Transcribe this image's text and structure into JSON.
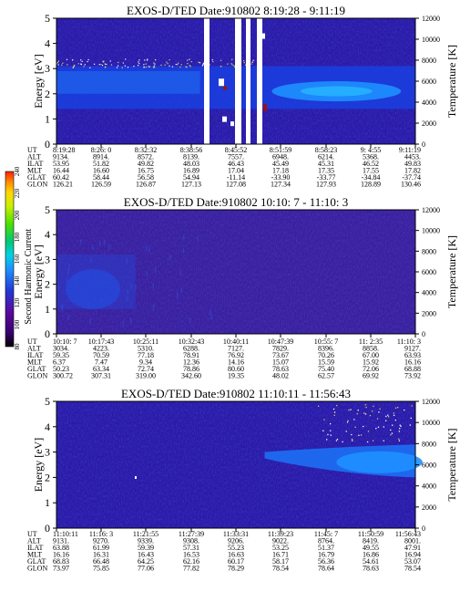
{
  "chart_data": [
    {
      "type": "heatmap",
      "title": "EXOS-D/TED   Date:910802   8:19:28 - 9:11:19",
      "ylabel": "Energy [eV]",
      "y2label": "Temperature [K]",
      "ylim": [
        0,
        5
      ],
      "y2lim": [
        0,
        12000
      ],
      "yticks": [
        "0",
        "1",
        "2",
        "3",
        "4",
        "5"
      ],
      "y2ticks": [
        "0",
        "2000",
        "4000",
        "6000",
        "8000",
        "10000",
        "12000"
      ],
      "band": {
        "lower_ev": 1.5,
        "upper_ev": 3.0,
        "intensity": 120
      },
      "table": {
        "labels": [
          "UT",
          "ALT",
          "ILAT",
          "MLT",
          "GLAT",
          "GLON"
        ],
        "columns": [
          [
            "8:19:28",
            "9134.",
            "53.95",
            "16.44",
            "60.42",
            "126.21"
          ],
          [
            "8:26: 0",
            "8914.",
            "51.82",
            "16.60",
            "58.44",
            "126.59"
          ],
          [
            "8:32:32",
            "8572.",
            "49.82",
            "16.75",
            "56.58",
            "126.87"
          ],
          [
            "8:38:56",
            "8139.",
            "48.03",
            "16.89",
            "54.94",
            "127.13"
          ],
          [
            "8:45:52",
            "7557.",
            "46.43",
            "17.04",
            "-11.14",
            "127.08"
          ],
          [
            "8:51:59",
            "6948.",
            "45.49",
            "17.18",
            "-33.90",
            "127.34"
          ],
          [
            "8:58:23",
            "6214.",
            "45.31",
            "17.35",
            "-33.77",
            "127.93"
          ],
          [
            "9: 4:55",
            "5368.",
            "46.52",
            "17.55",
            "-34.84",
            "128.89"
          ],
          [
            "9:11:19",
            "4453.",
            "49.83",
            "17.82",
            "-37.74",
            "130.46"
          ]
        ]
      }
    },
    {
      "type": "heatmap",
      "title": "EXOS-D/TED   Date:910802   10:10: 7 - 11:10: 3",
      "ylabel": "Energy [eV]",
      "y2label": "Temperature [K]",
      "ylim": [
        0,
        5
      ],
      "y2lim": [
        0,
        12000
      ],
      "yticks": [
        "0",
        "1",
        "2",
        "3",
        "4",
        "5"
      ],
      "y2ticks": [
        "0",
        "2000",
        "4000",
        "6000",
        "8000",
        "10000",
        "12000"
      ],
      "table": {
        "labels": [
          "UT",
          "ALT",
          "ILAT",
          "MLT",
          "GLAT",
          "GLON"
        ],
        "columns": [
          [
            "10:10: 7",
            "3034.",
            "59.35",
            "6.37",
            "50.23",
            "300.72"
          ],
          [
            "10:17:43",
            "4223.",
            "70.59",
            "7.47",
            "63.34",
            "307.31"
          ],
          [
            "10:25:11",
            "5310.",
            "77.18",
            "9.34",
            "72.74",
            "319.00"
          ],
          [
            "10:32:43",
            "6288.",
            "78.91",
            "12.36",
            "78.86",
            "342.60"
          ],
          [
            "10:40:11",
            "7127.",
            "76.92",
            "14.16",
            "80.60",
            "19.35"
          ],
          [
            "10:47:39",
            "7829.",
            "73.67",
            "15.07",
            "78.63",
            "48.02"
          ],
          [
            "10:55: 7",
            "8396.",
            "70.26",
            "15.59",
            "75.40",
            "62.57"
          ],
          [
            "11: 2:35",
            "8858.",
            "67.00",
            "15.92",
            "72.06",
            "69.92"
          ],
          [
            "11:10: 3",
            "9127.",
            "63.93",
            "16.16",
            "68.88",
            "73.92"
          ]
        ]
      }
    },
    {
      "type": "heatmap",
      "title": "EXOS-D/TED   Date:910802   11:10:11 - 11:56:43",
      "ylabel": "Energy [eV]",
      "y2label": "Temperature [K]",
      "ylim": [
        0,
        5
      ],
      "y2lim": [
        0,
        12000
      ],
      "yticks": [
        "0",
        "1",
        "2",
        "3",
        "4",
        "5"
      ],
      "y2ticks": [
        "0",
        "2000",
        "4000",
        "6000",
        "8000",
        "10000",
        "12000"
      ],
      "table": {
        "labels": [
          "UT",
          "ALT",
          "ILAT",
          "MLT",
          "GLAT",
          "GLON"
        ],
        "columns": [
          [
            "11:10:11",
            "9131.",
            "63.88",
            "16.16",
            "68.83",
            "73.97"
          ],
          [
            "11:16: 3",
            "9270.",
            "61.99",
            "16.31",
            "66.48",
            "75.85"
          ],
          [
            "11:21:55",
            "9339.",
            "59.39",
            "16.43",
            "64.25",
            "77.06"
          ],
          [
            "11:27:39",
            "9308.",
            "57.31",
            "16.53",
            "62.16",
            "77.82"
          ],
          [
            "11:33:31",
            "9206.",
            "55.23",
            "16.63",
            "60.17",
            "78.29"
          ],
          [
            "11:39:23",
            "9022.",
            "53.25",
            "16.71",
            "58.17",
            "78.54"
          ],
          [
            "11:45: 7",
            "8764.",
            "51.37",
            "16.79",
            "56.36",
            "78.64"
          ],
          [
            "11:50:59",
            "8419.",
            "49.55",
            "16.86",
            "54.61",
            "78.63"
          ],
          [
            "11:56:43",
            "8001.",
            "47.91",
            "16.94",
            "53.07",
            "78.54"
          ]
        ]
      }
    }
  ],
  "colorbar": {
    "label": "Second Harmonic Current",
    "ticks": [
      "80",
      "100",
      "120",
      "140",
      "160",
      "180",
      "200",
      "220",
      "240"
    ],
    "range": [
      80,
      240
    ],
    "colors": [
      "#000000",
      "#3a006f",
      "#5a0aa0",
      "#2238d6",
      "#1e90ff",
      "#00d2e6",
      "#00c878",
      "#4ce000",
      "#c8f000",
      "#ffd800",
      "#ff8c00",
      "#ff1e00"
    ]
  }
}
